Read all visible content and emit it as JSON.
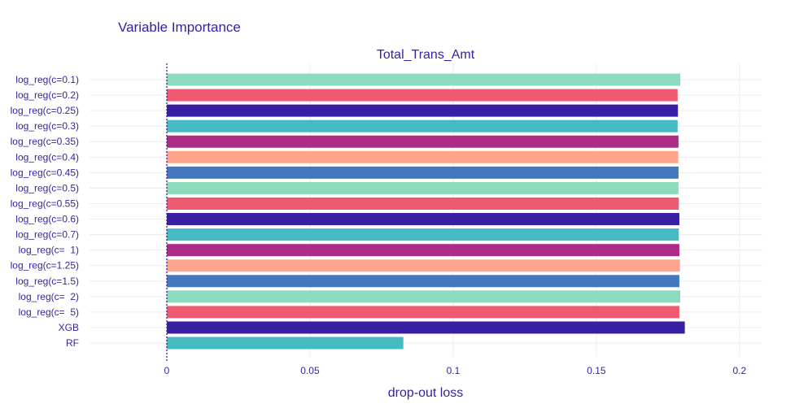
{
  "chart_data": {
    "type": "bar",
    "orientation": "horizontal",
    "title": "Variable Importance",
    "subtitle": "Total_Trans_Amt",
    "xlabel": "drop-out loss",
    "xlim": [
      -0.027,
      0.208
    ],
    "xticks": [
      0,
      0.05,
      0.1,
      0.15,
      0.2
    ],
    "xtick_labels": [
      "0",
      "0.05",
      "0.1",
      "0.15",
      "0.2"
    ],
    "baseline": 0,
    "grid": true,
    "categories": [
      "log_reg(c=0.1)",
      "log_reg(c=0.2)",
      "log_reg(c=0.25)",
      "log_reg(c=0.3)",
      "log_reg(c=0.35)",
      "log_reg(c=0.4)",
      "log_reg(c=0.45)",
      "log_reg(c=0.5)",
      "log_reg(c=0.55)",
      "log_reg(c=0.6)",
      "log_reg(c=0.7)",
      "log_reg(c=  1)",
      "log_reg(c=1.25)",
      "log_reg(c=1.5)",
      "log_reg(c=  2)",
      "log_reg(c=  5)",
      "XGB",
      "RF"
    ],
    "values": [
      0.1793,
      0.1784,
      0.1785,
      0.1784,
      0.1787,
      0.1786,
      0.1787,
      0.1787,
      0.1788,
      0.179,
      0.1788,
      0.179,
      0.1792,
      0.179,
      0.1793,
      0.179,
      0.1809,
      0.0826
    ],
    "colors": [
      "#8bdcbe",
      "#f05a71",
      "#371ea3",
      "#46bac2",
      "#ae2c87",
      "#ffa58c",
      "#4378bf",
      "#8bdcbe",
      "#f05a71",
      "#371ea3",
      "#46bac2",
      "#ae2c87",
      "#ffa58c",
      "#4378bf",
      "#8bdcbe",
      "#f05a71",
      "#371ea3",
      "#46bac2"
    ],
    "baseline_color": "#371ea3",
    "grid_color": "#ececec"
  }
}
